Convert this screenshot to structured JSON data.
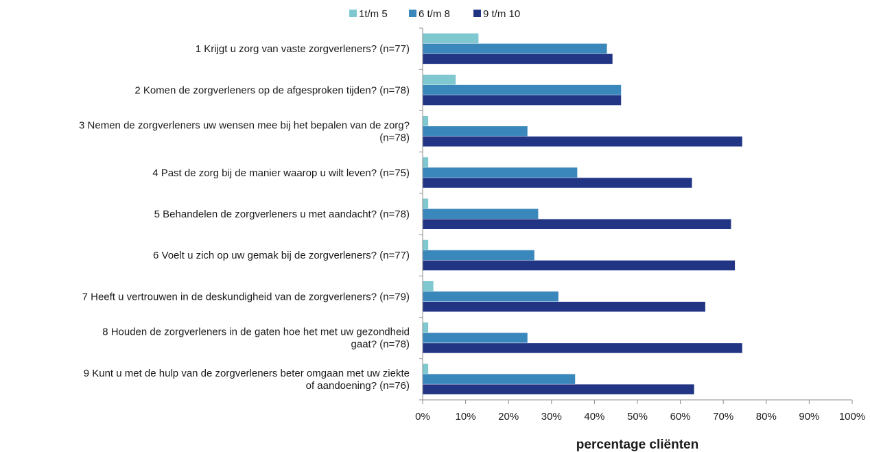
{
  "chart_data": {
    "type": "bar",
    "orientation": "horizontal",
    "categories": [
      [
        "1 Krijgt u zorg van vaste zorgverleners? (n=77)"
      ],
      [
        "2 Komen de zorgverleners op de afgesproken tijden? (n=78)"
      ],
      [
        "3 Nemen de zorgverleners uw wensen mee bij het bepalen van de zorg?",
        "(n=78)"
      ],
      [
        "4 Past de zorg bij de manier waarop u wilt leven? (n=75)"
      ],
      [
        "5 Behandelen de zorgverleners u met aandacht? (n=78)"
      ],
      [
        "6 Voelt u zich op uw gemak bij de zorgverleners? (n=77)"
      ],
      [
        "7 Heeft u vertrouwen in de deskundigheid van de zorgverleners? (n=79)"
      ],
      [
        "8 Houden de zorgverleners in de gaten hoe het met uw gezondheid",
        "gaat? (n=78)"
      ],
      [
        "9 Kunt u met de hulp van de zorgverleners beter omgaan met uw ziekte",
        "of aandoening? (n=76)"
      ]
    ],
    "series": [
      {
        "name": "1t/m 5",
        "color": "#80c8cf",
        "values": [
          13.0,
          7.7,
          1.3,
          1.3,
          1.3,
          1.3,
          2.5,
          1.3,
          1.3
        ]
      },
      {
        "name": "6 t/m 8",
        "color": "#3a87bb",
        "values": [
          42.9,
          46.2,
          24.4,
          36.0,
          26.9,
          26.0,
          31.6,
          24.4,
          35.5
        ]
      },
      {
        "name": "9 t/m 10",
        "color": "#223585",
        "values": [
          44.2,
          46.2,
          74.4,
          62.7,
          71.8,
          72.7,
          65.8,
          74.4,
          63.2
        ]
      }
    ],
    "xlim": [
      0,
      100
    ],
    "xticks": [
      "0%",
      "10%",
      "20%",
      "30%",
      "40%",
      "50%",
      "60%",
      "70%",
      "80%",
      "90%",
      "100%"
    ],
    "xlabel": "percentage cliënten",
    "legend_position": "top",
    "grid": false
  }
}
